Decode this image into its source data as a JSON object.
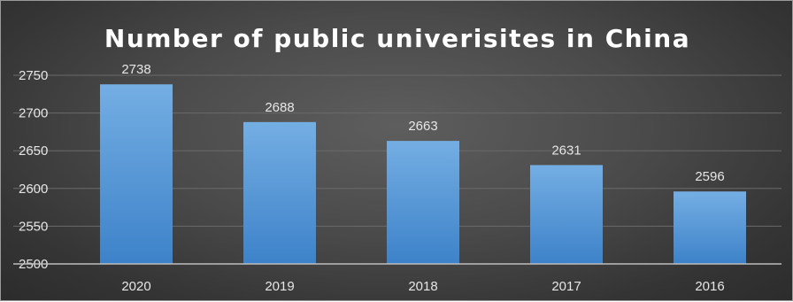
{
  "chart_data": {
    "type": "bar",
    "title": "Number of public univerisites in China",
    "categories": [
      "2020",
      "2019",
      "2018",
      "2017",
      "2016"
    ],
    "values": [
      2738,
      2688,
      2663,
      2631,
      2596
    ],
    "data_labels": [
      "2738",
      "2688",
      "2663",
      "2631",
      "2596"
    ],
    "ylim": [
      2500,
      2750
    ],
    "yticks": [
      2500,
      2550,
      2600,
      2650,
      2700,
      2750
    ],
    "ytick_labels": [
      "2500",
      "2550",
      "2600",
      "2650",
      "2700",
      "2750"
    ],
    "grid": true,
    "legend": "none",
    "bar_color": "#5b9bd5",
    "background_color": "#404040",
    "text_color": "#ffffff"
  }
}
